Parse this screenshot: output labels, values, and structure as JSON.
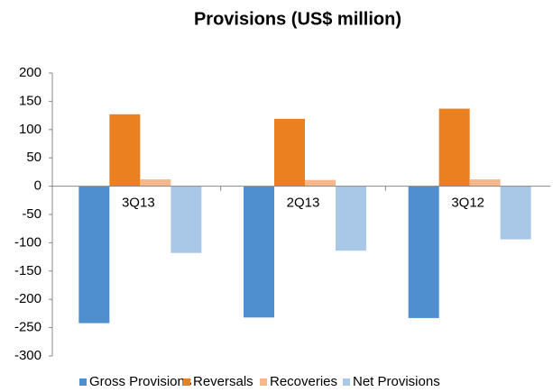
{
  "chart_data": {
    "type": "bar",
    "title": "Provisions (US$ million)",
    "categories": [
      "3Q13",
      "2Q13",
      "3Q12"
    ],
    "series": [
      {
        "name": "Gross Provisions",
        "color": "#4f8fd0",
        "values": [
          -242,
          -232,
          -233
        ]
      },
      {
        "name": "Reversals",
        "color": "#ea801f",
        "values": [
          127,
          119,
          137
        ]
      },
      {
        "name": "Recoveries",
        "color": "#f6b88a",
        "values": [
          12,
          11,
          12
        ]
      },
      {
        "name": "Net Provisions",
        "color": "#a9c8e8",
        "values": [
          -118,
          -114,
          -94
        ]
      }
    ],
    "ylim": [
      -300,
      200
    ],
    "yticks": [
      -300,
      -250,
      -200,
      -150,
      -100,
      -50,
      0,
      50,
      100,
      150,
      200
    ],
    "legend": "bottom"
  }
}
